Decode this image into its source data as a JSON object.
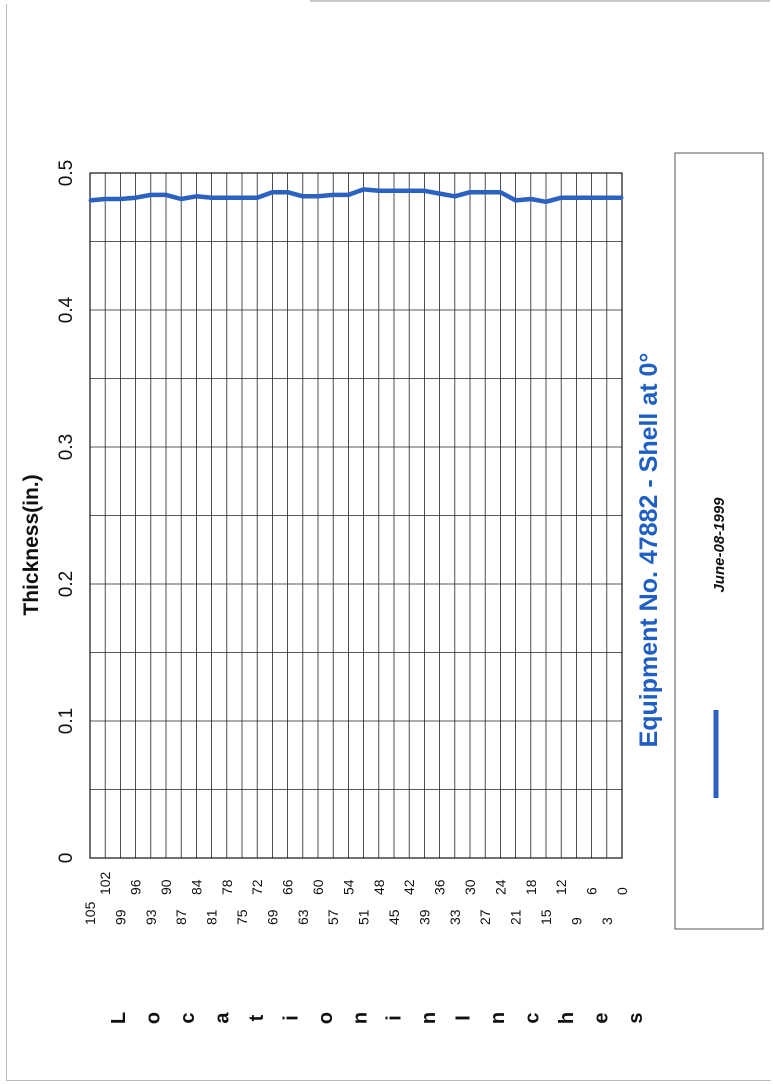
{
  "chart_data": {
    "type": "line",
    "title": "Equipment No. 47882 - Shell at 0°",
    "xlabel": "Location in Inches",
    "ylabel": "Thickness(in.)",
    "ylim": [
      0,
      0.5
    ],
    "y_ticks": [
      "0",
      "0.1",
      "0.2",
      "0.3",
      "0.4",
      "0.5"
    ],
    "x_ticks": [
      "105",
      "102",
      "99",
      "96",
      "93",
      "90",
      "87",
      "84",
      "81",
      "78",
      "75",
      "72",
      "69",
      "66",
      "63",
      "60",
      "57",
      "54",
      "51",
      "48",
      "45",
      "42",
      "39",
      "36",
      "33",
      "30",
      "27",
      "24",
      "21",
      "18",
      "15",
      "12",
      "9",
      "6",
      "3",
      "0"
    ],
    "grid": true,
    "legend_position": "right",
    "series": [
      {
        "name": "June-08-1999",
        "color": "#2b62c2",
        "x": [
          105,
          102,
          99,
          96,
          93,
          90,
          87,
          84,
          81,
          78,
          75,
          72,
          69,
          66,
          63,
          60,
          57,
          54,
          51,
          48,
          45,
          42,
          39,
          36,
          33,
          30,
          27,
          24,
          21,
          18,
          15,
          12,
          9,
          6,
          3,
          0
        ],
        "values": [
          0.48,
          0.481,
          0.481,
          0.482,
          0.484,
          0.484,
          0.481,
          0.483,
          0.482,
          0.482,
          0.482,
          0.482,
          0.486,
          0.486,
          0.483,
          0.483,
          0.484,
          0.484,
          0.488,
          0.487,
          0.487,
          0.487,
          0.487,
          0.485,
          0.483,
          0.486,
          0.486,
          0.486,
          0.48,
          0.481,
          0.479,
          0.482,
          0.482,
          0.482,
          0.482,
          0.482
        ]
      }
    ]
  }
}
